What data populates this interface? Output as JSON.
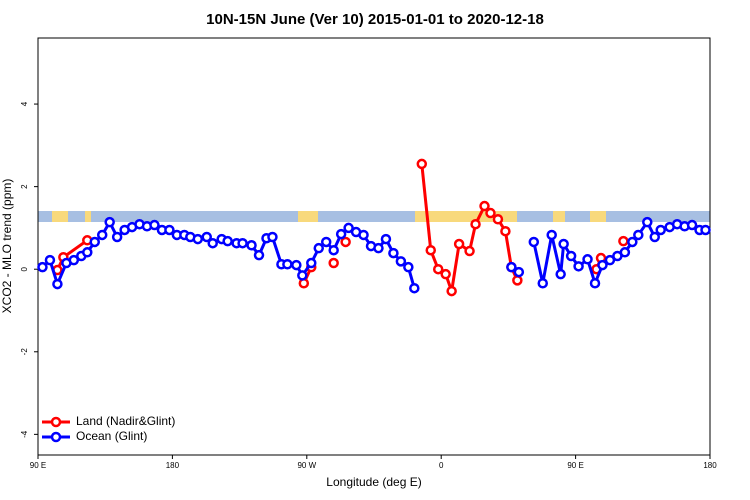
{
  "chart_data": {
    "type": "line",
    "title": "10N-15N June (Ver 10)   2015-01-01 to 2020-12-18",
    "xlabel": "Longitude (deg E)",
    "ylabel": "XCO2 - MLO trend (ppm)",
    "xlim": [
      90,
      540
    ],
    "ylim": [
      -4.5,
      5.6
    ],
    "xticks": [
      {
        "value": 90,
        "label": "90 E"
      },
      180,
      {
        "value": 270,
        "label": "90 W"
      },
      {
        "value": 360,
        "label": "0"
      },
      {
        "value": 450,
        "label": "90 E"
      },
      {
        "value": 540,
        "label": "180"
      }
    ],
    "yticks": [
      -4,
      -2,
      0,
      2,
      4
    ],
    "legend": "bottom-left",
    "series": [
      {
        "name": "Land (Nadir&Glint)",
        "color": "#ff0000",
        "x": [
          103,
          107,
          123,
          null,
          268,
          273,
          null,
          288,
          null,
          296,
          null,
          347,
          353,
          358,
          363,
          367,
          372,
          379,
          383,
          389,
          393,
          398,
          403,
          407,
          411,
          null,
          464,
          467,
          null,
          482
        ],
        "values": [
          -0.02,
          0.29,
          0.7,
          null,
          -0.34,
          0.05,
          null,
          0.15,
          null,
          0.66,
          null,
          2.55,
          0.46,
          0,
          -0.12,
          -0.53,
          0.61,
          0.44,
          1.09,
          1.53,
          1.36,
          1.21,
          0.92,
          0.05,
          -0.27,
          null,
          0,
          0.27,
          null,
          0.68
        ]
      },
      {
        "name": "Ocean (Glint)",
        "color": "#0000ff",
        "x": [
          93,
          98,
          103,
          109,
          114,
          119,
          123,
          128,
          133,
          138,
          143,
          148,
          153,
          158,
          163,
          168,
          173,
          178,
          183,
          188,
          192,
          197,
          203,
          207,
          213,
          217,
          223,
          227,
          233,
          238,
          243,
          247,
          253,
          257,
          263,
          267,
          273,
          278,
          283,
          288,
          293,
          298,
          303,
          308,
          313,
          318,
          323,
          328,
          333,
          338,
          342,
          null,
          407,
          412,
          null,
          422,
          428,
          434,
          440,
          442,
          447,
          452,
          458,
          463,
          468,
          473,
          478,
          483,
          488,
          492,
          498,
          503,
          507,
          513,
          518,
          523,
          528,
          533,
          537
        ],
        "values": [
          0.05,
          0.22,
          -0.36,
          0.15,
          0.22,
          0.32,
          0.41,
          0.66,
          0.83,
          1.14,
          0.78,
          0.95,
          1.02,
          1.09,
          1.04,
          1.07,
          0.95,
          0.95,
          0.83,
          0.83,
          0.78,
          0.73,
          0.78,
          0.63,
          0.73,
          0.68,
          0.63,
          0.63,
          0.58,
          0.34,
          0.75,
          0.78,
          0.12,
          0.12,
          0.1,
          -0.15,
          0.15,
          0.51,
          0.66,
          0.46,
          0.85,
          1.0,
          0.9,
          0.83,
          0.56,
          0.51,
          0.73,
          0.39,
          0.19,
          0.05,
          -0.46,
          null,
          0.05,
          -0.07,
          null,
          0.66,
          -0.34,
          0.83,
          -0.12,
          0.61,
          0.32,
          0.07,
          0.24,
          -0.34,
          0.1,
          0.22,
          0.32,
          0.41,
          0.66,
          0.83,
          1.14,
          0.78,
          0.95,
          1.02,
          1.09,
          1.04,
          1.07,
          0.95,
          0.95
        ]
      }
    ]
  }
}
